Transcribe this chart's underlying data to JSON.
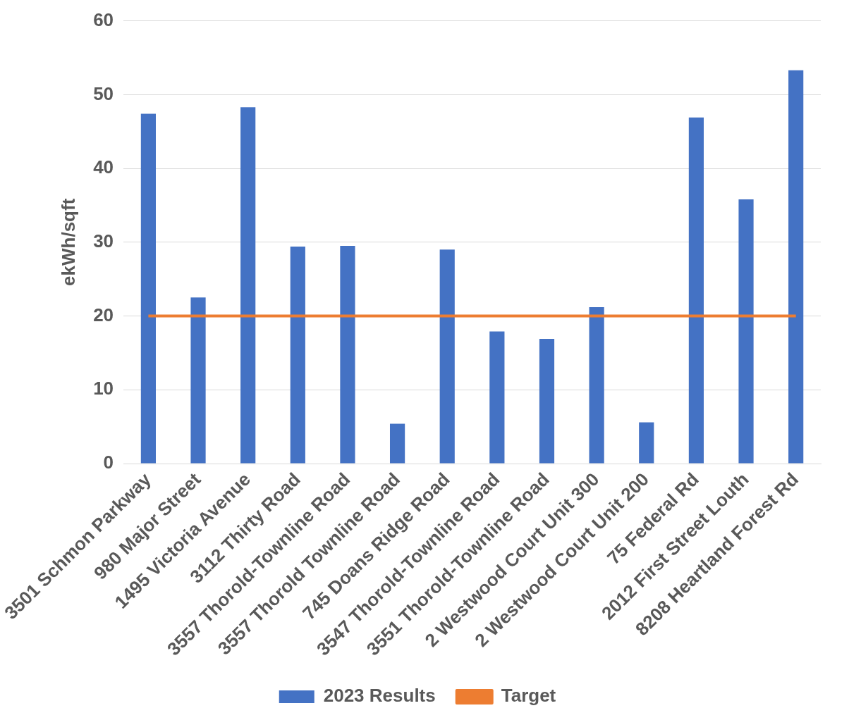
{
  "chart_data": {
    "type": "bar",
    "ylabel": "ekWh/sqft",
    "categories": [
      "3501 Schmon Parkway",
      "980 Major Street",
      "1495 Victoria Avenue",
      "3112 Thirty Road",
      "3557 Thorold-Townline Road",
      "3557 Thorold Townline Road",
      "745 Doans Ridge Road",
      "3547 Thorold-Townline Road",
      "3551 Thorold-Townline Road",
      "2 Westwood Court Unit 300",
      "2 Westwood Court Unit 200",
      "75 Federal Rd",
      "2012 First Street Louth",
      "8208 Heartland Forest Rd"
    ],
    "series": [
      {
        "name": "2023 Results",
        "color": "#4472c4",
        "values": [
          47.4,
          22.5,
          48.3,
          29.4,
          29.5,
          5.4,
          29.0,
          17.9,
          16.9,
          21.2,
          5.6,
          46.9,
          35.8,
          53.3
        ]
      },
      {
        "name": "Target",
        "type": "line",
        "color": "#ed7d31",
        "values": [
          20,
          20,
          20,
          20,
          20,
          20,
          20,
          20,
          20,
          20,
          20,
          20,
          20,
          20
        ]
      }
    ],
    "ylim": [
      0,
      60
    ],
    "yticks": [
      0,
      10,
      20,
      30,
      40,
      50,
      60
    ],
    "grid": "y",
    "legend": "bottom",
    "marker": "none"
  }
}
